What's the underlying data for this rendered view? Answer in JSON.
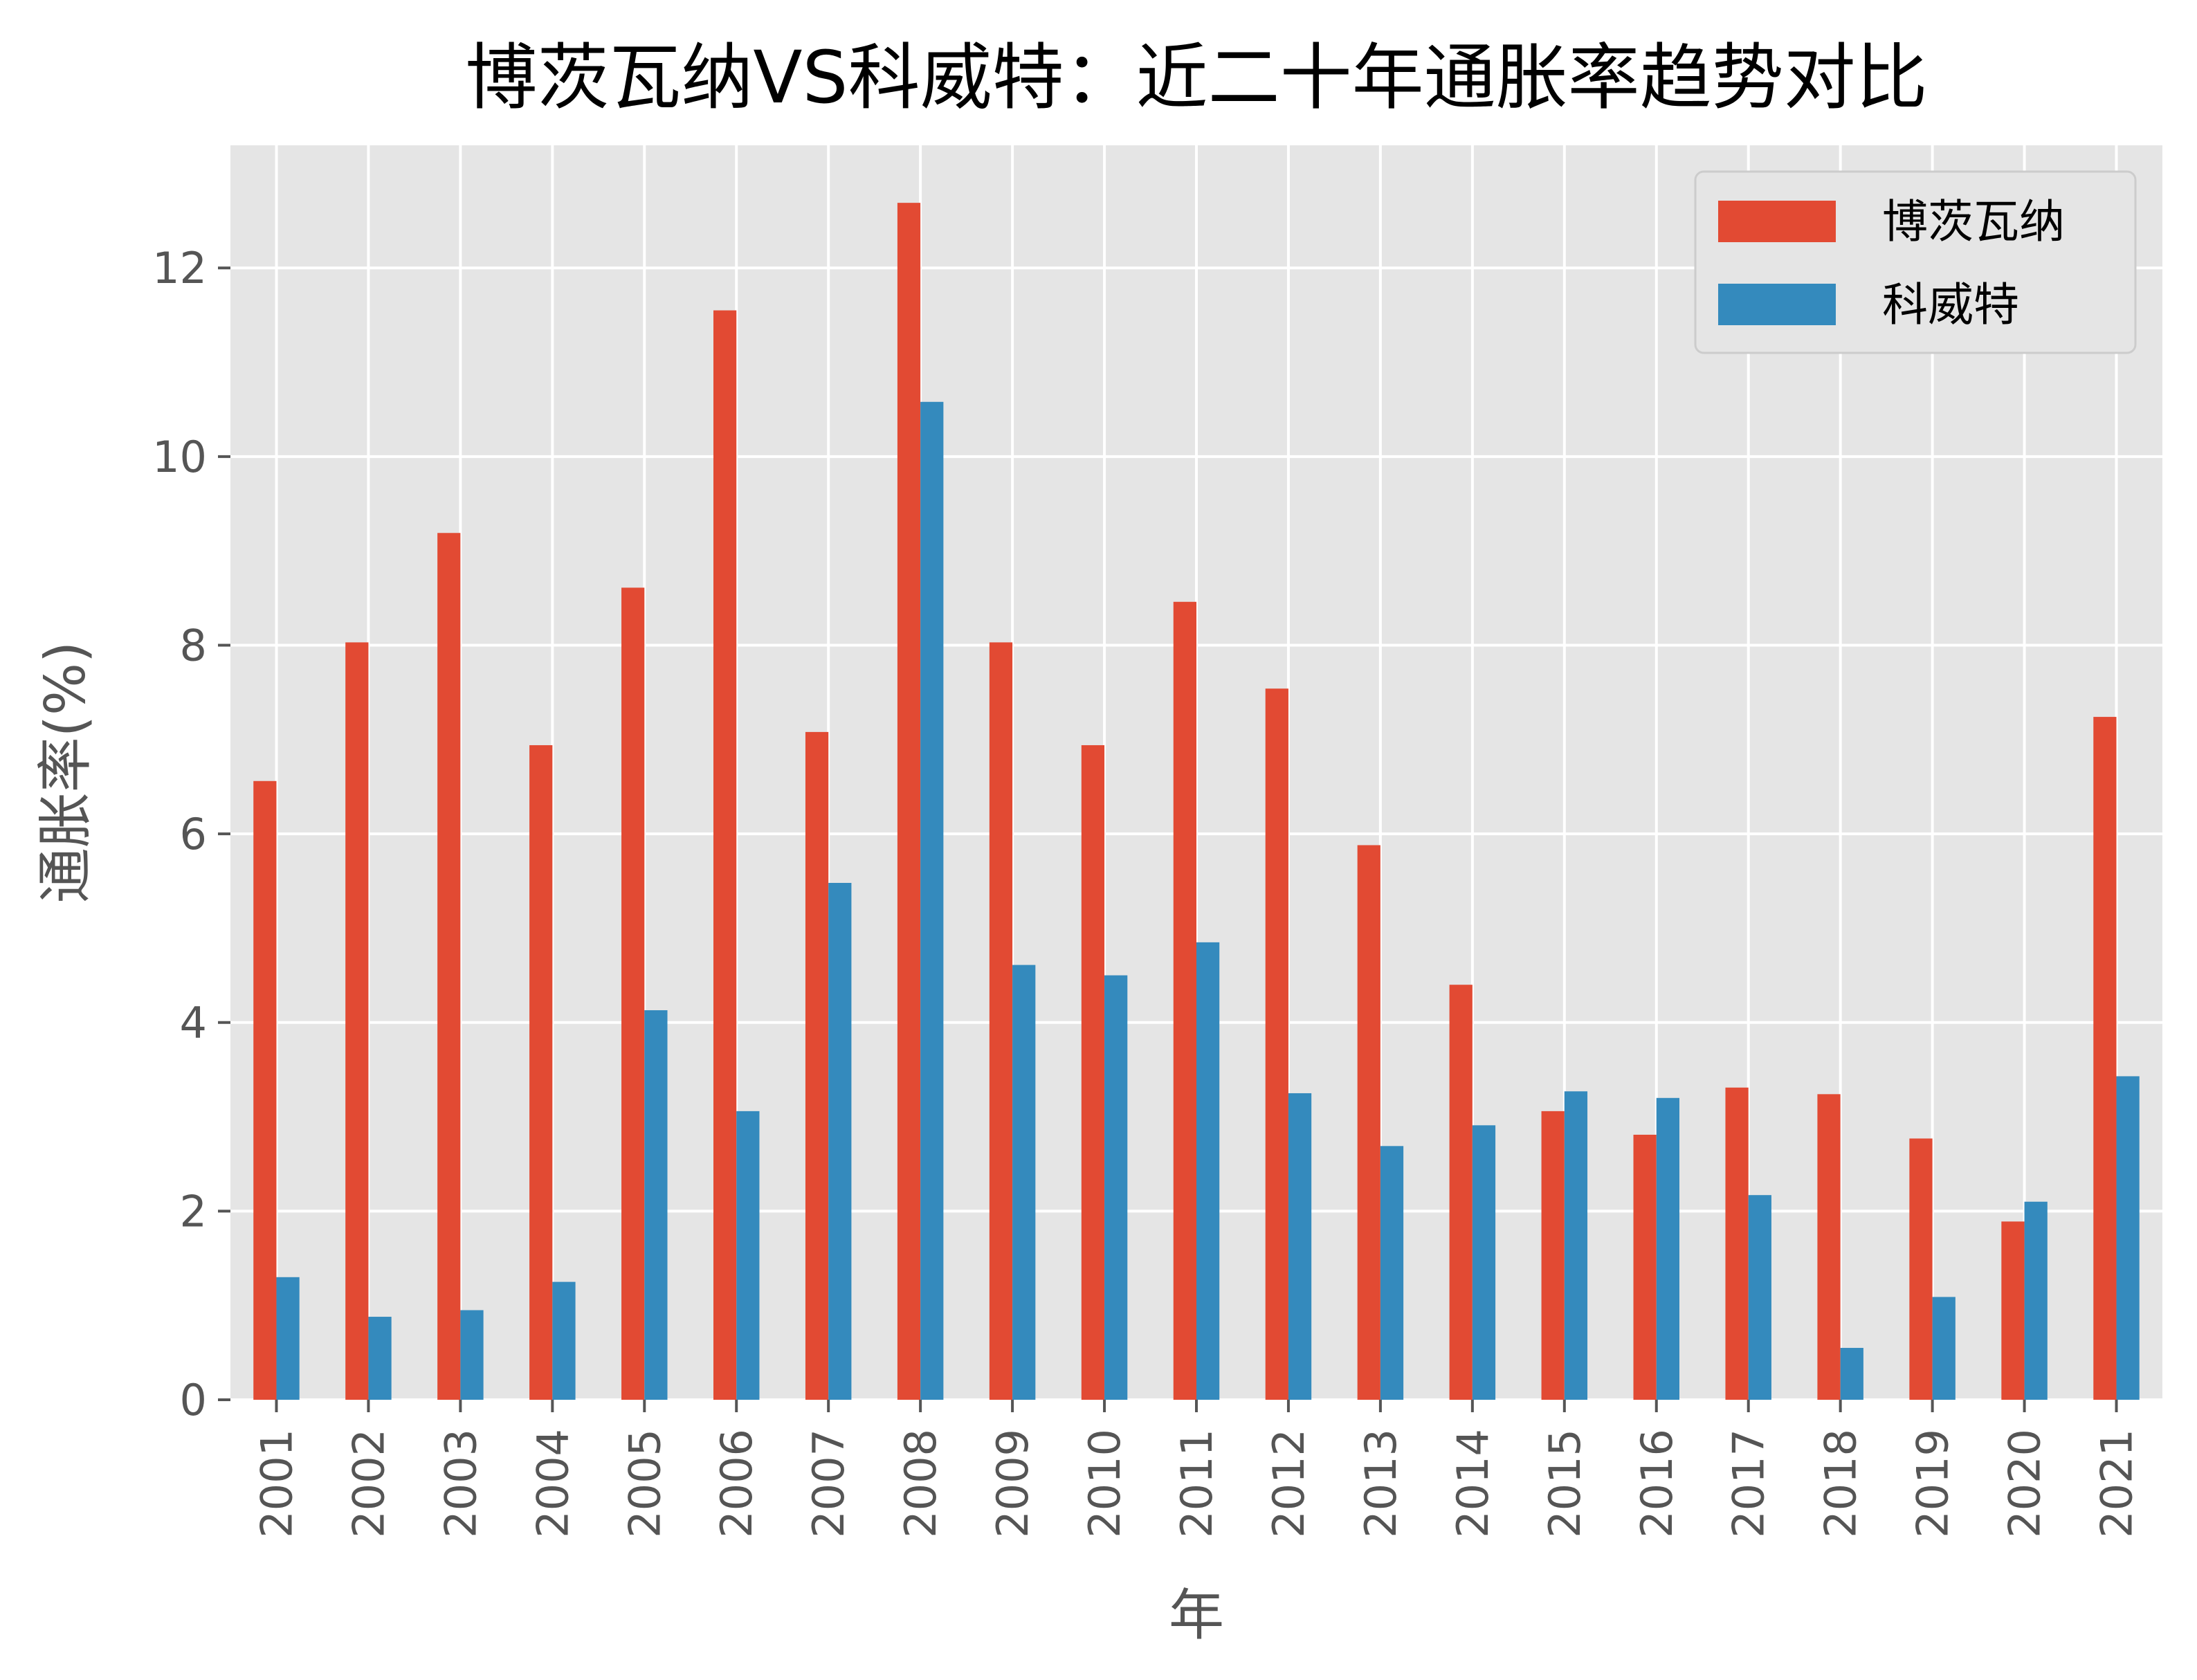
{
  "chart_data": {
    "type": "bar",
    "title": "博茨瓦纳VS科威特：近二十年通胀率趋势对比",
    "xlabel": "年",
    "ylabel": "通胀率(%)",
    "categories": [
      "2001",
      "2002",
      "2003",
      "2004",
      "2005",
      "2006",
      "2007",
      "2008",
      "2009",
      "2010",
      "2011",
      "2012",
      "2013",
      "2014",
      "2015",
      "2016",
      "2017",
      "2018",
      "2019",
      "2020",
      "2021"
    ],
    "series": [
      {
        "name": "博茨瓦纳",
        "color": "#E24A33",
        "values": [
          6.56,
          8.03,
          9.19,
          6.94,
          8.61,
          11.55,
          7.08,
          12.69,
          8.03,
          6.94,
          8.46,
          7.54,
          5.88,
          4.4,
          3.06,
          2.81,
          3.31,
          3.24,
          2.77,
          1.89,
          7.24
        ]
      },
      {
        "name": "科威特",
        "color": "#348ABD",
        "values": [
          1.3,
          0.88,
          0.95,
          1.25,
          4.13,
          3.06,
          5.48,
          10.58,
          4.61,
          4.5,
          4.85,
          3.25,
          2.69,
          2.91,
          3.27,
          3.2,
          2.17,
          0.55,
          1.09,
          2.1,
          3.43
        ]
      }
    ],
    "yticks": [
      0,
      2,
      4,
      6,
      8,
      10,
      12
    ],
    "ylim": [
      0,
      13.3
    ],
    "grid": true,
    "legend_position": "top-right"
  }
}
